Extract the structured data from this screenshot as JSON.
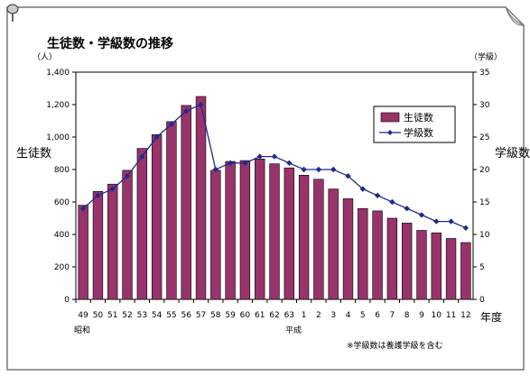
{
  "chart_data": {
    "type": "bar",
    "title": "生徒数・学級数の推移",
    "categories": [
      "49",
      "50",
      "51",
      "52",
      "53",
      "54",
      "55",
      "56",
      "57",
      "58",
      "59",
      "60",
      "61",
      "62",
      "63",
      "1",
      "2",
      "3",
      "4",
      "5",
      "6",
      "7",
      "8",
      "9",
      "10",
      "11",
      "12"
    ],
    "era_labels": [
      "昭和",
      "平成"
    ],
    "xlabel": "年度",
    "ylabel_left": "生徒数",
    "ylabel_right": "学級数",
    "unit_left": "（人）",
    "unit_right": "（学級）",
    "ylim_left": [
      0,
      1400
    ],
    "ylim_right": [
      0,
      35
    ],
    "yticks_left": [
      "1,400",
      "1,200",
      "1,000",
      "800",
      "600",
      "400",
      "200",
      "0"
    ],
    "yticks_right": [
      "35",
      "30",
      "25",
      "20",
      "15",
      "10",
      "5",
      "0"
    ],
    "series": [
      {
        "name": "生徒数",
        "type": "bar",
        "axis": "left",
        "color": "#99336b",
        "values": [
          580,
          665,
          710,
          795,
          930,
          1015,
          1095,
          1195,
          1250,
          795,
          850,
          855,
          865,
          835,
          810,
          765,
          740,
          680,
          620,
          560,
          545,
          500,
          470,
          425,
          410,
          375,
          350
        ]
      },
      {
        "name": "学級数",
        "type": "line",
        "axis": "right",
        "color": "#1f2a8c",
        "values": [
          14,
          16,
          17,
          19,
          22,
          25,
          27,
          29,
          30,
          20,
          21,
          21,
          22,
          22,
          21,
          20,
          20,
          20,
          19,
          17,
          16,
          15,
          14,
          13,
          12,
          12,
          11
        ]
      }
    ],
    "legend_position": "top-right",
    "note": "※学級数は養護学級を含む"
  }
}
